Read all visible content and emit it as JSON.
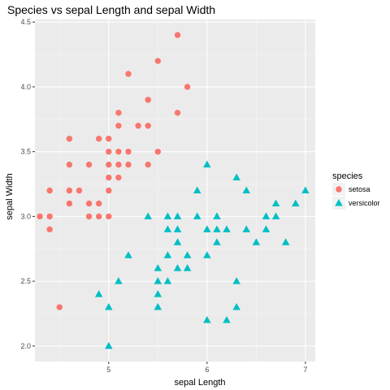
{
  "chart_data": {
    "type": "scatter",
    "title": "Species vs sepal Length and sepal Width",
    "xlabel": "sepal Length",
    "ylabel": "sepal Width",
    "xlim": [
      4.25,
      7.1
    ],
    "ylim": [
      1.88,
      4.52
    ],
    "x_ticks": [
      5,
      6,
      7
    ],
    "y_ticks": [
      2.0,
      2.5,
      3.0,
      3.5,
      4.0,
      4.5
    ],
    "y_tick_labels": [
      "2.0",
      "2.5",
      "3.0",
      "3.5",
      "4.0",
      "4.5"
    ],
    "grid": true,
    "legend": {
      "title": "species",
      "position": "right"
    },
    "series": [
      {
        "name": "setosa",
        "color": "#F8766D",
        "marker": "circle",
        "points": [
          [
            4.3,
            3.0
          ],
          [
            4.4,
            3.0
          ],
          [
            4.4,
            2.9
          ],
          [
            4.4,
            3.2
          ],
          [
            4.5,
            2.3
          ],
          [
            4.6,
            3.6
          ],
          [
            4.6,
            3.4
          ],
          [
            4.6,
            3.2
          ],
          [
            4.6,
            3.1
          ],
          [
            4.7,
            3.2
          ],
          [
            4.8,
            3.4
          ],
          [
            4.8,
            3.1
          ],
          [
            4.8,
            3.0
          ],
          [
            4.9,
            3.6
          ],
          [
            4.9,
            3.1
          ],
          [
            4.9,
            3.0
          ],
          [
            5.0,
            3.6
          ],
          [
            5.0,
            3.5
          ],
          [
            5.0,
            3.4
          ],
          [
            5.0,
            3.3
          ],
          [
            5.0,
            3.2
          ],
          [
            5.0,
            3.0
          ],
          [
            5.1,
            3.8
          ],
          [
            5.1,
            3.7
          ],
          [
            5.1,
            3.5
          ],
          [
            5.1,
            3.4
          ],
          [
            5.1,
            3.3
          ],
          [
            5.2,
            4.1
          ],
          [
            5.2,
            3.5
          ],
          [
            5.2,
            3.4
          ],
          [
            5.3,
            3.7
          ],
          [
            5.4,
            3.9
          ],
          [
            5.4,
            3.7
          ],
          [
            5.4,
            3.4
          ],
          [
            5.5,
            4.2
          ],
          [
            5.5,
            3.5
          ],
          [
            5.7,
            4.4
          ],
          [
            5.7,
            3.8
          ],
          [
            5.8,
            4.0
          ]
        ]
      },
      {
        "name": "versicolor",
        "color": "#00BFC4",
        "marker": "triangle",
        "points": [
          [
            4.9,
            2.4
          ],
          [
            5.0,
            2.0
          ],
          [
            5.0,
            2.3
          ],
          [
            5.1,
            2.5
          ],
          [
            5.2,
            2.7
          ],
          [
            5.4,
            3.0
          ],
          [
            5.5,
            2.6
          ],
          [
            5.5,
            2.5
          ],
          [
            5.5,
            2.4
          ],
          [
            5.5,
            2.3
          ],
          [
            5.6,
            3.0
          ],
          [
            5.6,
            2.9
          ],
          [
            5.6,
            2.7
          ],
          [
            5.6,
            2.5
          ],
          [
            5.7,
            3.0
          ],
          [
            5.7,
            2.9
          ],
          [
            5.7,
            2.8
          ],
          [
            5.7,
            2.6
          ],
          [
            5.8,
            2.7
          ],
          [
            5.8,
            2.6
          ],
          [
            5.9,
            3.2
          ],
          [
            5.9,
            3.0
          ],
          [
            6.0,
            3.4
          ],
          [
            6.0,
            2.9
          ],
          [
            6.0,
            2.7
          ],
          [
            6.0,
            2.2
          ],
          [
            6.1,
            3.0
          ],
          [
            6.1,
            2.9
          ],
          [
            6.1,
            2.8
          ],
          [
            6.2,
            2.9
          ],
          [
            6.2,
            2.2
          ],
          [
            6.3,
            3.3
          ],
          [
            6.3,
            2.5
          ],
          [
            6.3,
            2.3
          ],
          [
            6.4,
            3.2
          ],
          [
            6.4,
            2.9
          ],
          [
            6.5,
            2.8
          ],
          [
            6.6,
            3.0
          ],
          [
            6.6,
            2.9
          ],
          [
            6.7,
            3.1
          ],
          [
            6.7,
            3.0
          ],
          [
            6.8,
            2.8
          ],
          [
            6.9,
            3.1
          ],
          [
            7.0,
            3.2
          ]
        ]
      }
    ]
  }
}
